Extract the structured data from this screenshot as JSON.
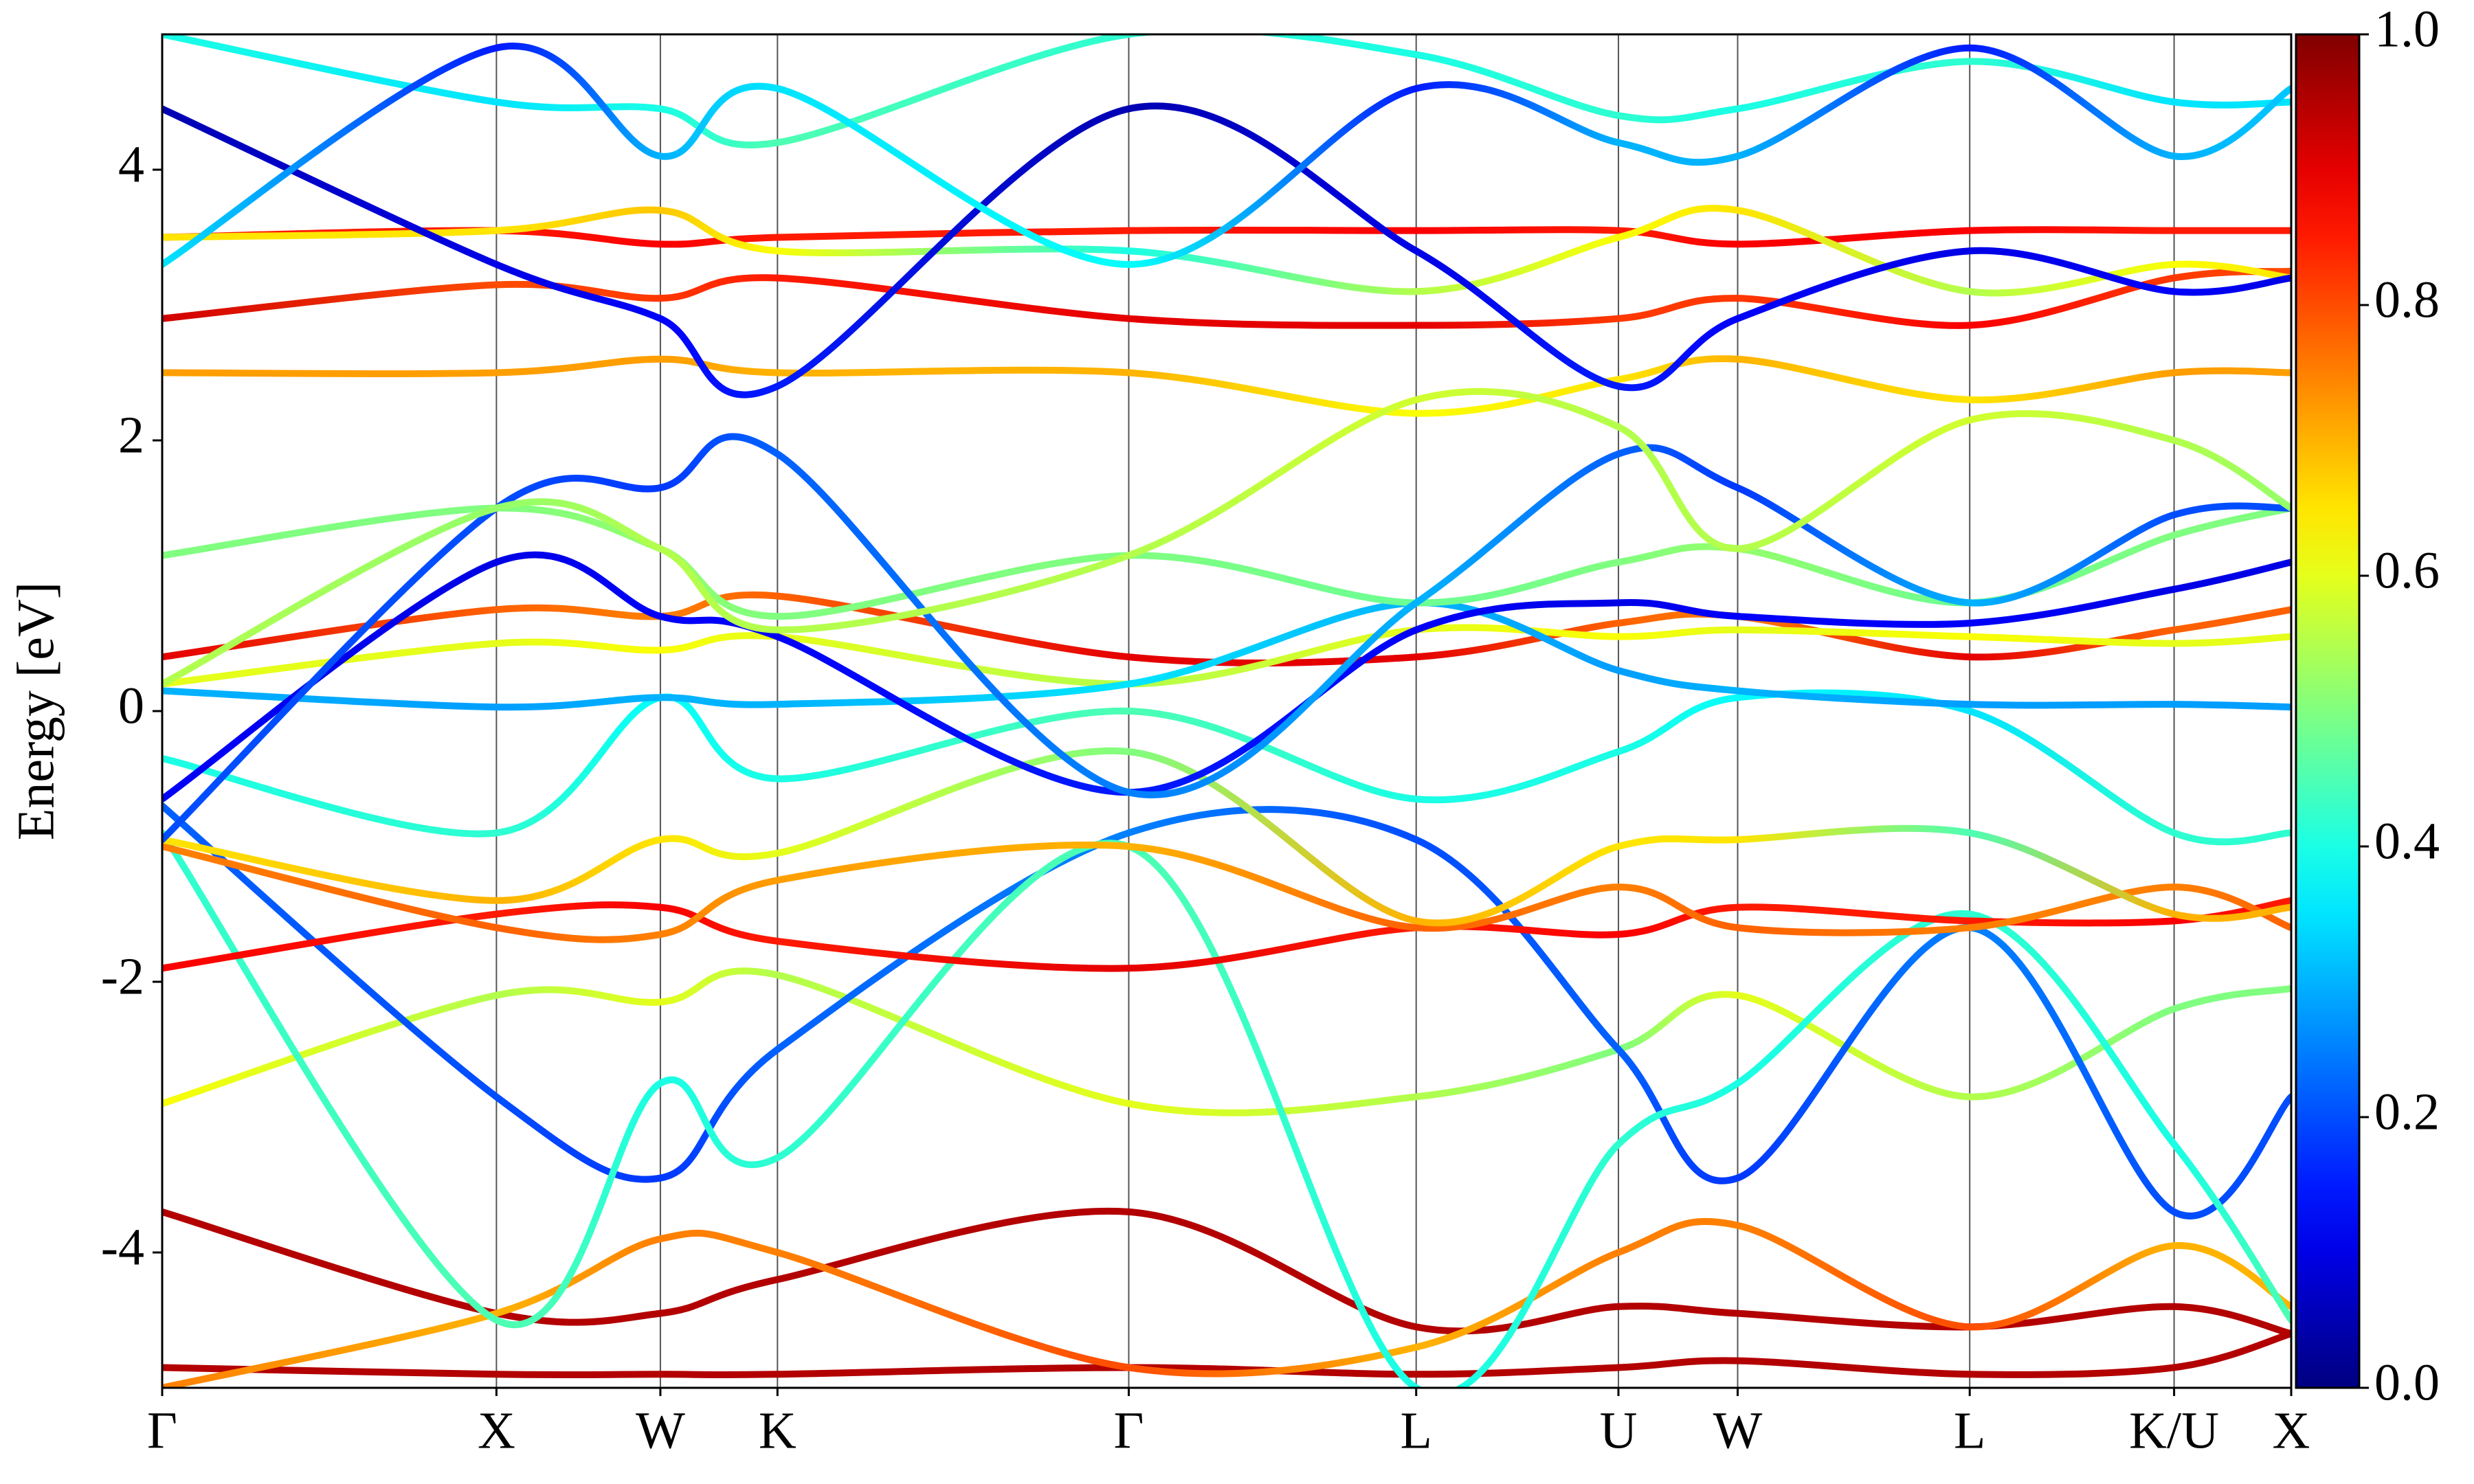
{
  "chart_data": {
    "type": "line",
    "ylabel": "Energy [eV]",
    "x": [
      0,
      0.157,
      0.234,
      0.289,
      0.454,
      0.589,
      0.684,
      0.74,
      0.849,
      0.945,
      1.0
    ],
    "xlim": [
      0,
      1.0
    ],
    "xticks": [
      {
        "value": 0,
        "label": "Γ"
      },
      {
        "value": 0.157,
        "label": "X"
      },
      {
        "value": 0.234,
        "label": "W"
      },
      {
        "value": 0.289,
        "label": "K"
      },
      {
        "value": 0.454,
        "label": "Γ"
      },
      {
        "value": 0.589,
        "label": "L"
      },
      {
        "value": 0.684,
        "label": "U"
      },
      {
        "value": 0.74,
        "label": "W"
      },
      {
        "value": 0.849,
        "label": "L"
      },
      {
        "value": 0.945,
        "label": "K/U"
      },
      {
        "value": 1.0,
        "label": "X"
      }
    ],
    "ylim": [
      -5,
      5
    ],
    "yticks": [
      -4,
      -2,
      0,
      2,
      4
    ],
    "grid": "x",
    "colormap": "jet",
    "colorbar": {
      "lim": [
        0,
        1.0
      ],
      "ticks": [
        {
          "value": 0,
          "label": "0.0"
        },
        {
          "value": 0.2,
          "label": "0.2"
        },
        {
          "value": 0.4,
          "label": "0.4"
        },
        {
          "value": 0.6,
          "label": "0.6"
        },
        {
          "value": 0.8,
          "label": "0.8"
        },
        {
          "value": 1.0,
          "label": "1.0"
        }
      ]
    },
    "series": [
      {
        "values": [
          -4.85,
          -4.9,
          -4.9,
          -4.9,
          -4.85,
          -4.9,
          -4.85,
          -4.8,
          -4.9,
          -4.85,
          -4.6
        ],
        "weights": [
          0.95,
          0.95,
          0.95,
          0.95,
          0.95,
          0.95,
          0.95,
          0.95,
          0.95,
          0.95,
          0.95
        ]
      },
      {
        "values": [
          -3.7,
          -4.45,
          -4.45,
          -4.2,
          -3.7,
          -4.55,
          -4.4,
          -4.45,
          -4.55,
          -4.4,
          -4.6
        ],
        "weights": [
          0.95,
          0.95,
          0.95,
          0.95,
          0.95,
          0.95,
          0.95,
          0.95,
          0.95,
          0.95,
          0.95
        ]
      },
      {
        "values": [
          -5.0,
          -4.45,
          -3.9,
          -4.0,
          -4.85,
          -4.7,
          -4.0,
          -3.8,
          -4.55,
          -3.95,
          -4.4
        ],
        "weights": [
          0.75,
          0.7,
          0.75,
          0.75,
          0.8,
          0.7,
          0.75,
          0.75,
          0.8,
          0.7,
          0.7
        ]
      },
      {
        "values": [
          -2.9,
          -2.1,
          -2.15,
          -1.95,
          -2.9,
          -2.85,
          -2.5,
          -2.1,
          -2.85,
          -2.2,
          -2.05
        ],
        "weights": [
          0.62,
          0.55,
          0.6,
          0.55,
          0.6,
          0.55,
          0.5,
          0.6,
          0.55,
          0.5,
          0.5
        ]
      },
      {
        "values": [
          -0.7,
          -2.85,
          -3.45,
          -2.5,
          -0.9,
          -0.95,
          -2.5,
          -3.45,
          -1.6,
          -3.7,
          -2.85
        ],
        "weights": [
          0.22,
          0.2,
          0.18,
          0.22,
          0.25,
          0.2,
          0.22,
          0.18,
          0.25,
          0.2,
          0.2
        ]
      },
      {
        "values": [
          -0.9,
          -4.5,
          -2.75,
          -3.3,
          -1.0,
          -5.0,
          -3.2,
          -2.75,
          -1.5,
          -3.2,
          -4.5
        ],
        "weights": [
          0.42,
          0.45,
          0.4,
          0.42,
          0.45,
          0.4,
          0.42,
          0.4,
          0.42,
          0.4,
          0.45
        ]
      },
      {
        "values": [
          -1.9,
          -1.5,
          -1.45,
          -1.7,
          -1.9,
          -1.6,
          -1.65,
          -1.45,
          -1.55,
          -1.55,
          -1.4
        ],
        "weights": [
          0.88,
          0.85,
          0.88,
          0.85,
          0.9,
          0.85,
          0.88,
          0.85,
          0.85,
          0.88,
          0.85
        ]
      },
      {
        "values": [
          -1.0,
          -1.6,
          -1.65,
          -1.25,
          -1.0,
          -1.6,
          -1.3,
          -1.6,
          -1.6,
          -1.3,
          -1.6
        ],
        "weights": [
          0.75,
          0.78,
          0.75,
          0.72,
          0.7,
          0.78,
          0.75,
          0.78,
          0.75,
          0.75,
          0.78
        ]
      },
      {
        "values": [
          -0.95,
          -1.4,
          -0.95,
          -1.05,
          -0.3,
          -1.55,
          -1.0,
          -0.95,
          -0.9,
          -1.5,
          -1.45
        ],
        "weights": [
          0.65,
          0.7,
          0.65,
          0.6,
          0.5,
          0.7,
          0.65,
          0.65,
          0.45,
          0.7,
          0.7
        ]
      },
      {
        "values": [
          -0.35,
          -0.9,
          0.1,
          -0.5,
          0.0,
          -0.65,
          -0.3,
          0.1,
          0.0,
          -0.9,
          -0.9
        ],
        "weights": [
          0.4,
          0.42,
          0.38,
          0.4,
          0.45,
          0.4,
          0.4,
          0.38,
          0.35,
          0.42,
          0.42
        ]
      },
      {
        "values": [
          0.4,
          0.75,
          0.7,
          0.85,
          0.4,
          0.4,
          0.65,
          0.7,
          0.4,
          0.6,
          0.75
        ],
        "weights": [
          0.9,
          0.78,
          0.75,
          0.78,
          0.9,
          0.9,
          0.78,
          0.75,
          0.9,
          0.78,
          0.78
        ]
      },
      {
        "values": [
          0.2,
          0.5,
          0.45,
          0.55,
          0.2,
          0.6,
          0.55,
          0.6,
          0.55,
          0.5,
          0.55
        ],
        "weights": [
          0.6,
          0.6,
          0.62,
          0.6,
          0.55,
          0.6,
          0.62,
          0.6,
          0.62,
          0.6,
          0.6
        ]
      },
      {
        "values": [
          0.15,
          0.03,
          0.1,
          0.05,
          0.2,
          0.8,
          0.3,
          0.15,
          0.05,
          0.05,
          0.03
        ],
        "weights": [
          0.3,
          0.28,
          0.3,
          0.3,
          0.35,
          0.3,
          0.28,
          0.3,
          0.28,
          0.28,
          0.28
        ]
      },
      {
        "values": [
          1.15,
          1.5,
          1.2,
          0.7,
          1.15,
          0.8,
          1.1,
          1.2,
          0.8,
          1.3,
          1.5
        ],
        "weights": [
          0.5,
          0.5,
          0.52,
          0.5,
          0.5,
          0.48,
          0.5,
          0.52,
          0.48,
          0.5,
          0.5
        ]
      },
      {
        "values": [
          -0.65,
          1.1,
          0.7,
          0.55,
          -0.6,
          0.6,
          0.8,
          0.7,
          0.65,
          0.9,
          1.1
        ],
        "weights": [
          0.12,
          0.1,
          0.12,
          0.12,
          0.15,
          0.12,
          0.1,
          0.12,
          0.12,
          0.1,
          0.1
        ]
      },
      {
        "values": [
          -0.95,
          1.5,
          1.65,
          1.9,
          -0.6,
          0.8,
          1.9,
          1.65,
          0.8,
          1.45,
          1.5
        ],
        "weights": [
          0.2,
          0.2,
          0.18,
          0.22,
          0.25,
          0.3,
          0.22,
          0.18,
          0.3,
          0.2,
          0.2
        ]
      },
      {
        "values": [
          2.5,
          2.5,
          2.6,
          2.5,
          2.5,
          2.2,
          2.45,
          2.6,
          2.3,
          2.5,
          2.5
        ],
        "weights": [
          0.72,
          0.72,
          0.72,
          0.7,
          0.7,
          0.62,
          0.65,
          0.7,
          0.65,
          0.72,
          0.72
        ]
      },
      {
        "values": [
          0.2,
          1.5,
          1.2,
          0.6,
          1.15,
          2.3,
          2.1,
          1.2,
          2.15,
          2.0,
          1.5
        ],
        "weights": [
          0.55,
          0.52,
          0.55,
          0.55,
          0.55,
          0.58,
          0.55,
          0.55,
          0.58,
          0.55,
          0.52
        ]
      },
      {
        "values": [
          2.9,
          3.15,
          3.05,
          3.2,
          2.9,
          2.85,
          2.9,
          3.05,
          2.85,
          3.2,
          3.25
        ],
        "weights": [
          0.92,
          0.8,
          0.82,
          0.85,
          0.9,
          0.9,
          0.82,
          0.82,
          0.88,
          0.82,
          0.8
        ]
      },
      {
        "values": [
          3.5,
          3.55,
          3.45,
          3.5,
          3.55,
          3.55,
          3.55,
          3.45,
          3.55,
          3.55,
          3.55
        ],
        "weights": [
          0.85,
          0.85,
          0.88,
          0.85,
          0.85,
          0.88,
          0.85,
          0.88,
          0.88,
          0.85,
          0.85
        ]
      },
      {
        "values": [
          3.5,
          3.55,
          3.7,
          3.4,
          3.4,
          3.1,
          3.5,
          3.7,
          3.1,
          3.3,
          3.2
        ],
        "weights": [
          0.65,
          0.65,
          0.68,
          0.62,
          0.4,
          0.55,
          0.62,
          0.65,
          0.55,
          0.62,
          0.65
        ]
      },
      {
        "values": [
          4.45,
          3.3,
          2.9,
          2.4,
          4.45,
          3.4,
          2.4,
          2.9,
          3.4,
          3.1,
          3.2
        ],
        "weights": [
          0.05,
          0.1,
          0.12,
          0.15,
          0.05,
          0.1,
          0.15,
          0.12,
          0.1,
          0.12,
          0.1
        ]
      },
      {
        "values": [
          5.0,
          4.5,
          4.45,
          4.2,
          5.0,
          4.85,
          4.4,
          4.45,
          4.8,
          4.5,
          4.5
        ],
        "weights": [
          0.4,
          0.35,
          0.4,
          0.45,
          0.42,
          0.4,
          0.42,
          0.4,
          0.42,
          0.35,
          0.35
        ]
      },
      {
        "values": [
          3.3,
          4.9,
          4.1,
          4.6,
          3.3,
          4.6,
          4.2,
          4.1,
          4.9,
          4.1,
          4.6
        ],
        "weights": [
          0.35,
          0.15,
          0.3,
          0.35,
          0.38,
          0.15,
          0.3,
          0.3,
          0.15,
          0.3,
          0.32
        ]
      }
    ]
  }
}
